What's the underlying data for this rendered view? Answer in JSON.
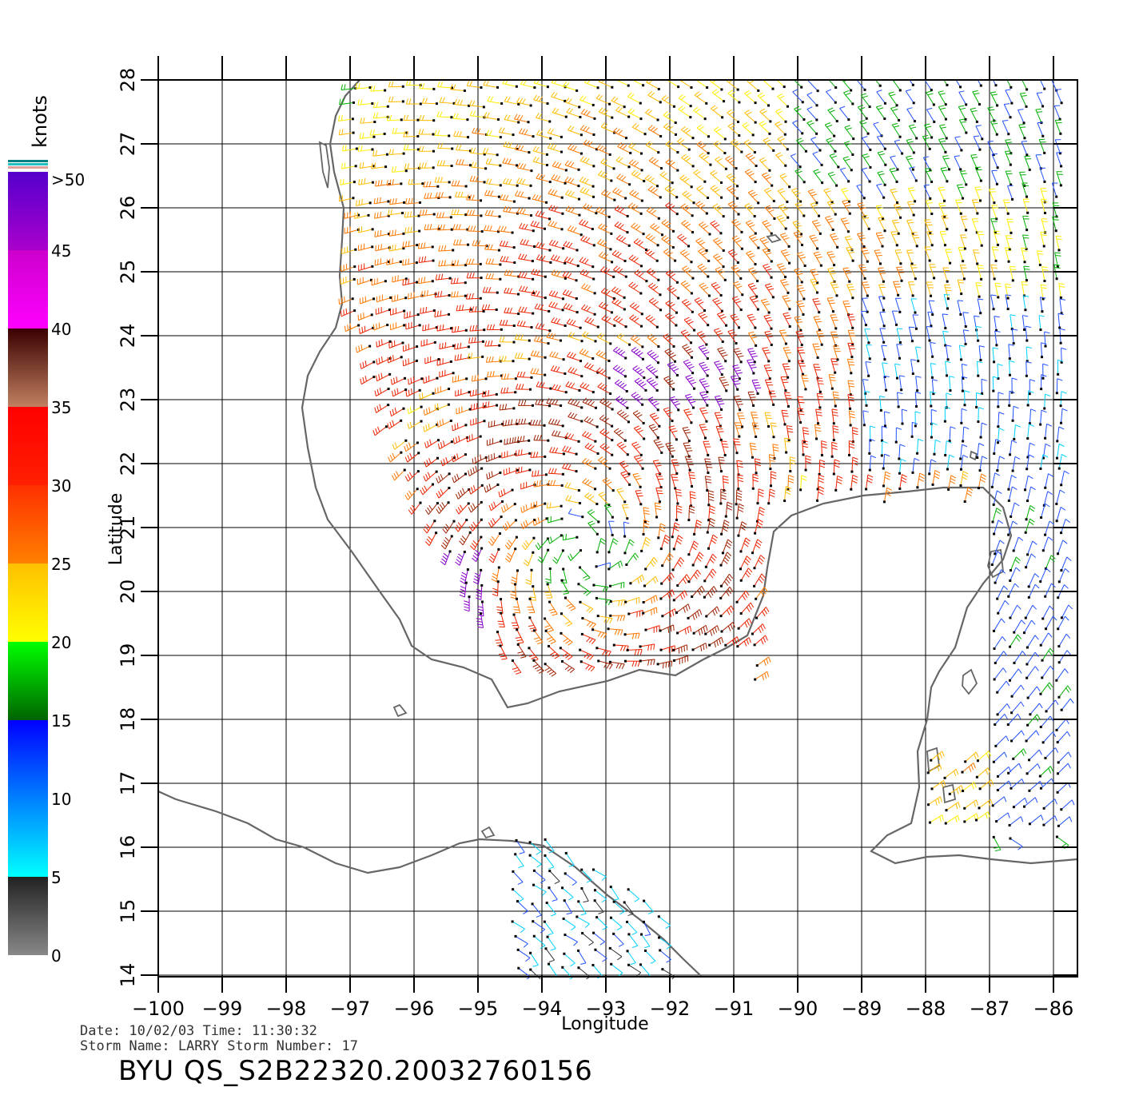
{
  "chart_data": {
    "type": "wind-barb-map",
    "title": "BYU  QS_S2B22320.20032760156",
    "xlabel": "Longitude",
    "ylabel": "Latitude",
    "xlim": [
      -100,
      -86
    ],
    "ylim": [
      14,
      28
    ],
    "x_ticks": [
      "−100",
      "−99",
      "−98",
      "−97",
      "−96",
      "−95",
      "−94",
      "−93",
      "−92",
      "−91",
      "−90",
      "−89",
      "−88",
      "−87",
      "−86"
    ],
    "y_ticks": [
      "14",
      "15",
      "16",
      "17",
      "18",
      "19",
      "20",
      "21",
      "22",
      "23",
      "24",
      "25",
      "26",
      "27",
      "28"
    ],
    "grid": true,
    "storm_center": {
      "lon": -93.3,
      "lat": 20.6
    },
    "legend": {
      "units": "knots",
      "labels": [
        "0",
        "5",
        "10",
        "15",
        "20",
        "25",
        "30",
        "35",
        "40",
        "45",
        ">50"
      ],
      "bands": [
        {
          "range": "0-5",
          "colors": [
            "#888888",
            "#222222"
          ]
        },
        {
          "range": "5-15",
          "colors": [
            "#00ffff",
            "#0000ff"
          ]
        },
        {
          "range": "15-20",
          "colors": [
            "#006400",
            "#00ff00"
          ]
        },
        {
          "range": "20-25",
          "colors": [
            "#ffff00",
            "#ffc000"
          ]
        },
        {
          "range": "25-30",
          "colors": [
            "#ff8000",
            "#ff3000"
          ]
        },
        {
          "range": "30-35",
          "colors": [
            "#ff2000",
            "#ff0000"
          ]
        },
        {
          "range": "35-40",
          "colors": [
            "#c08060",
            "#3a0000"
          ]
        },
        {
          "range": "40-45",
          "colors": [
            "#ff00ff",
            "#cc00cc"
          ]
        },
        {
          "range": "45-50",
          "colors": [
            "#aa00cc",
            "#5500cc"
          ]
        }
      ]
    }
  },
  "footer": {
    "line1": "Date: 10/02/03   Time: 11:30:32",
    "line2": "Storm Name: LARRY   Storm Number: 17"
  }
}
